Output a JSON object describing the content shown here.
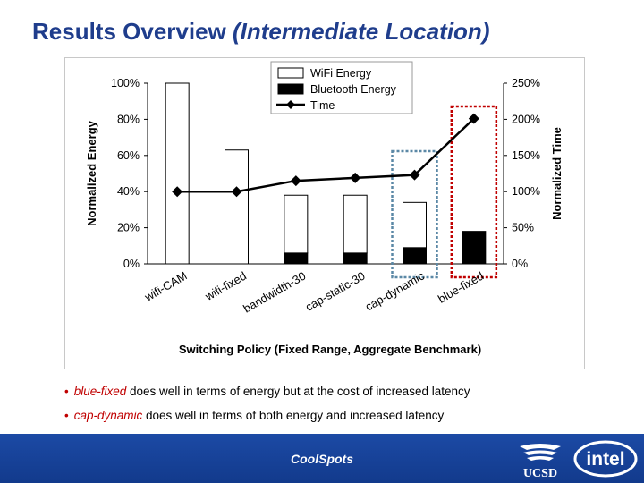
{
  "slide": {
    "title_main": "Results Overview ",
    "title_em": "(Intermediate Location)"
  },
  "chart_data": {
    "type": "bar",
    "categories": [
      "wifi-CAM",
      "wifi-fixed",
      "bandwidth-30",
      "cap-static-30",
      "cap-dynamic",
      "blue-fixed"
    ],
    "series": [
      {
        "name": "WiFi Energy",
        "type": "bar",
        "axis": "left",
        "values": [
          100,
          63,
          32,
          32,
          25,
          0
        ]
      },
      {
        "name": "Bluetooth Energy",
        "type": "bar",
        "axis": "left",
        "values": [
          0,
          0,
          6,
          6,
          9,
          18
        ]
      },
      {
        "name": "Time",
        "type": "line",
        "axis": "right",
        "values": [
          100,
          100,
          115,
          119,
          123,
          201
        ]
      }
    ],
    "xlabel": "Switching Policy (Fixed Range, Aggregate Benchmark)",
    "ylabel": "Normalized Energy",
    "y2label": "Normalized Time",
    "ylim": [
      0,
      100
    ],
    "y2lim": [
      0,
      250
    ],
    "yticks": [
      "0%",
      "20%",
      "40%",
      "60%",
      "80%",
      "100%"
    ],
    "y2ticks": [
      "0%",
      "50%",
      "100%",
      "150%",
      "200%",
      "250%"
    ],
    "grid": false,
    "legend": "top-center",
    "highlight_boxes": [
      {
        "category": "cap-dynamic",
        "color": "#5b88a6"
      },
      {
        "category": "blue-fixed",
        "color": "#c00000"
      }
    ]
  },
  "bullets": [
    {
      "em": "blue-fixed",
      "text": " does well in terms of energy but at the cost of increased latency"
    },
    {
      "em": "cap-dynamic",
      "text": " does well in terms of both energy and increased latency"
    }
  ],
  "footer": {
    "center_text": "CoolSpots",
    "ucsd_logo_text": "UCSD",
    "intel_logo_text": "intel"
  },
  "colors": {
    "title": "#1f3d8c",
    "accent": "#c00000",
    "footer": "#1c4aa5"
  }
}
